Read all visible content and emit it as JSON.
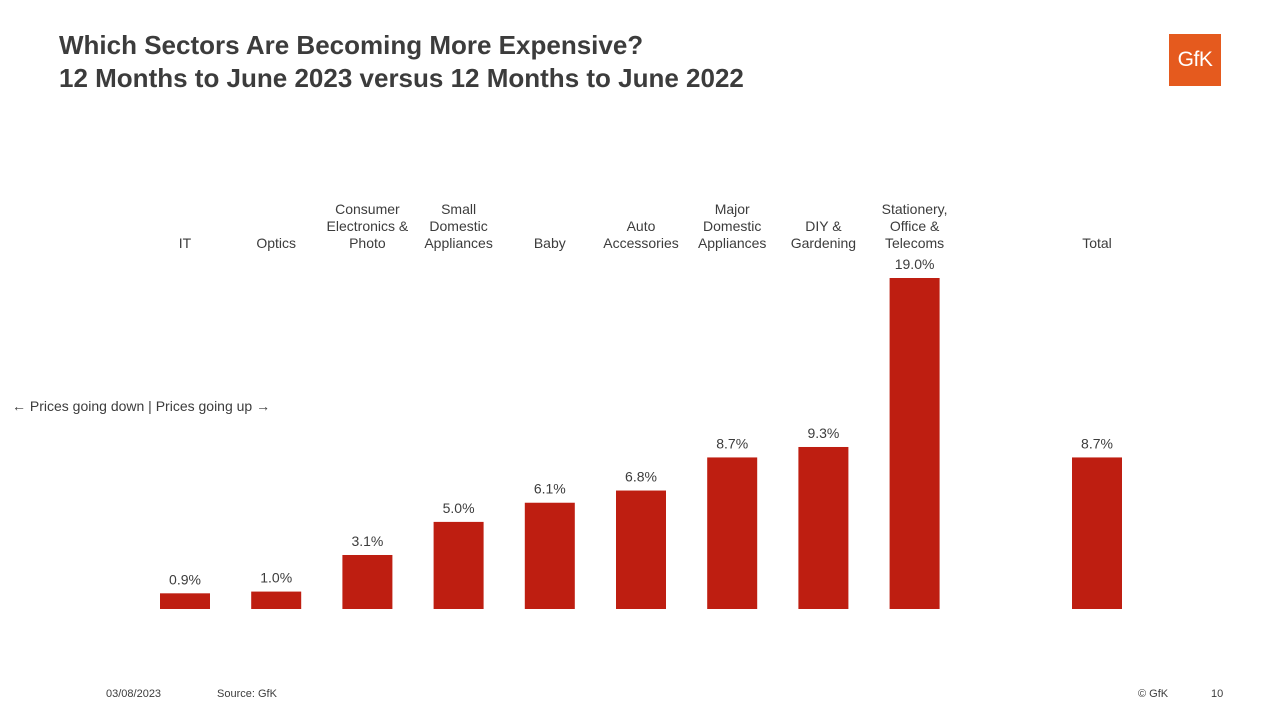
{
  "header": {
    "title": "Which Sectors Are Becoming More Expensive?",
    "subtitle": "12 Months to June 2023 versus 12 Months to June 2022",
    "logo_text": "GfK",
    "logo_color": "#e55a1e"
  },
  "annotation": "← Prices going down | Prices going up →",
  "footer": {
    "date": "03/08/2023",
    "source": "Source: GfK",
    "copyright": "© GfK",
    "page": "10"
  },
  "colors": {
    "bar": "#be1e11",
    "text": "#3c3c3c"
  },
  "chart_data": {
    "type": "bar",
    "title": "Which Sectors Are Becoming More Expensive?",
    "subtitle": "12 Months to June 2023 versus 12 Months to June 2022",
    "categories": [
      [
        "IT"
      ],
      [
        "Optics"
      ],
      [
        "Consumer",
        "Electronics &",
        "Photo"
      ],
      [
        "Small",
        "Domestic",
        "Appliances"
      ],
      [
        "Baby"
      ],
      [
        "Auto",
        "Accessories"
      ],
      [
        "Major",
        "Domestic",
        "Appliances"
      ],
      [
        "DIY &",
        "Gardening"
      ],
      [
        "Stationery,",
        "Office &",
        "Telecoms"
      ],
      [],
      [
        "Total"
      ]
    ],
    "values": [
      0.9,
      1.0,
      3.1,
      5.0,
      6.1,
      6.8,
      8.7,
      9.3,
      19.0,
      null,
      8.7
    ],
    "labels": [
      "0.9%",
      "1.0%",
      "3.1%",
      "5.0%",
      "6.1%",
      "6.8%",
      "8.7%",
      "9.3%",
      "19.0%",
      "",
      "8.7%"
    ],
    "unit": "%",
    "xlabel": "",
    "ylabel": "",
    "ylim": [
      0,
      19.0
    ],
    "grid": false,
    "legend": "none"
  }
}
